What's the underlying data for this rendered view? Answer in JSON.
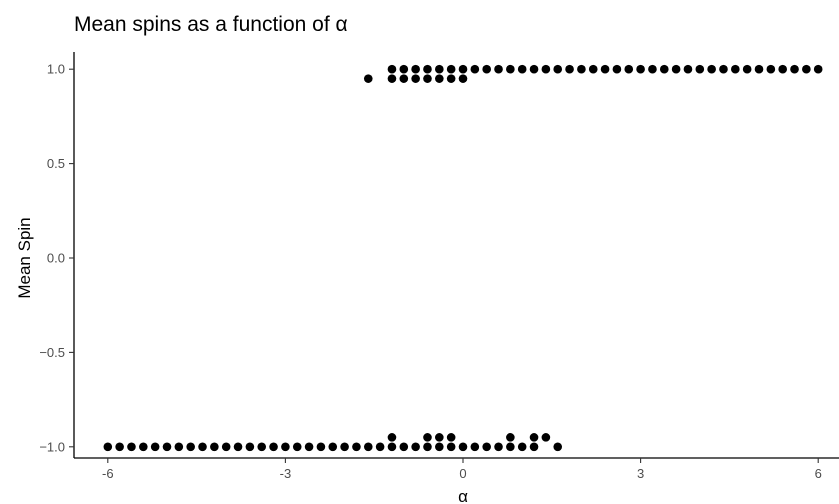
{
  "chart_data": {
    "type": "scatter",
    "title": "Mean spins as a function of α",
    "xlabel": "α",
    "ylabel": "Mean Spin",
    "xlim": [
      -6.05,
      6.05
    ],
    "ylim": [
      -1.05,
      1.05
    ],
    "x_ticks": [
      -6,
      -3,
      0,
      3,
      6
    ],
    "x_tick_labels": [
      "-6",
      "-3",
      "0",
      "3",
      "6"
    ],
    "y_ticks": [
      -1.0,
      -0.5,
      0.0,
      0.5,
      1.0
    ],
    "y_tick_labels": [
      "−1.0",
      "−0.5",
      "0.0",
      "0.5",
      "1.0"
    ],
    "grid": false,
    "legend": "none",
    "point_color": "#000000",
    "series": [
      {
        "points": [
          [
            -6.0,
            -1
          ],
          [
            -5.8,
            -1
          ],
          [
            -5.6,
            -1
          ],
          [
            -5.4,
            -1
          ],
          [
            -5.2,
            -1
          ],
          [
            -5.0,
            -1
          ],
          [
            -4.8,
            -1
          ],
          [
            -4.6,
            -1
          ],
          [
            -4.4,
            -1
          ],
          [
            -4.2,
            -1
          ],
          [
            -4.0,
            -1
          ],
          [
            -3.8,
            -1
          ],
          [
            -3.6,
            -1
          ],
          [
            -3.4,
            -1
          ],
          [
            -3.2,
            -1
          ],
          [
            -3.0,
            -1
          ],
          [
            -2.8,
            -1
          ],
          [
            -2.6,
            -1
          ],
          [
            -2.4,
            -1
          ],
          [
            -2.2,
            -1
          ],
          [
            -2.0,
            -1
          ],
          [
            -1.8,
            -1
          ],
          [
            -1.6,
            -1
          ],
          [
            -1.4,
            -1
          ],
          [
            -1.2,
            -1
          ],
          [
            -1.0,
            -1
          ],
          [
            -0.8,
            -1
          ],
          [
            -0.6,
            -1
          ],
          [
            -0.4,
            -1
          ],
          [
            -0.2,
            -1
          ],
          [
            0.0,
            -1
          ],
          [
            0.2,
            -1
          ],
          [
            0.4,
            -1
          ],
          [
            0.6,
            -1
          ],
          [
            0.8,
            -1
          ],
          [
            1.0,
            -1
          ],
          [
            1.2,
            -1
          ],
          [
            1.6,
            -1
          ],
          [
            -1.2,
            -0.95
          ],
          [
            -0.6,
            -0.95
          ],
          [
            -0.4,
            -0.95
          ],
          [
            -0.2,
            -0.95
          ],
          [
            0.8,
            -0.95
          ],
          [
            1.2,
            -0.95
          ],
          [
            1.4,
            -0.95
          ],
          [
            -1.6,
            0.95
          ],
          [
            -1.2,
            0.95
          ],
          [
            -1.0,
            0.95
          ],
          [
            -0.8,
            0.95
          ],
          [
            -0.6,
            0.95
          ],
          [
            -0.4,
            0.95
          ],
          [
            -0.2,
            0.95
          ],
          [
            0.0,
            0.95
          ],
          [
            -1.2,
            1
          ],
          [
            -1.0,
            1
          ],
          [
            -0.8,
            1
          ],
          [
            -0.6,
            1
          ],
          [
            -0.4,
            1
          ],
          [
            -0.2,
            1
          ],
          [
            0.0,
            1
          ],
          [
            0.2,
            1
          ],
          [
            0.4,
            1
          ],
          [
            0.6,
            1
          ],
          [
            0.8,
            1
          ],
          [
            1.0,
            1
          ],
          [
            1.2,
            1
          ],
          [
            1.4,
            1
          ],
          [
            1.6,
            1
          ],
          [
            1.8,
            1
          ],
          [
            2.0,
            1
          ],
          [
            2.2,
            1
          ],
          [
            2.4,
            1
          ],
          [
            2.6,
            1
          ],
          [
            2.8,
            1
          ],
          [
            3.0,
            1
          ],
          [
            3.2,
            1
          ],
          [
            3.4,
            1
          ],
          [
            3.6,
            1
          ],
          [
            3.8,
            1
          ],
          [
            4.0,
            1
          ],
          [
            4.2,
            1
          ],
          [
            4.4,
            1
          ],
          [
            4.6,
            1
          ],
          [
            4.8,
            1
          ],
          [
            5.0,
            1
          ],
          [
            5.2,
            1
          ],
          [
            5.4,
            1
          ],
          [
            5.6,
            1
          ],
          [
            5.8,
            1
          ],
          [
            6.0,
            1
          ]
        ]
      }
    ]
  }
}
